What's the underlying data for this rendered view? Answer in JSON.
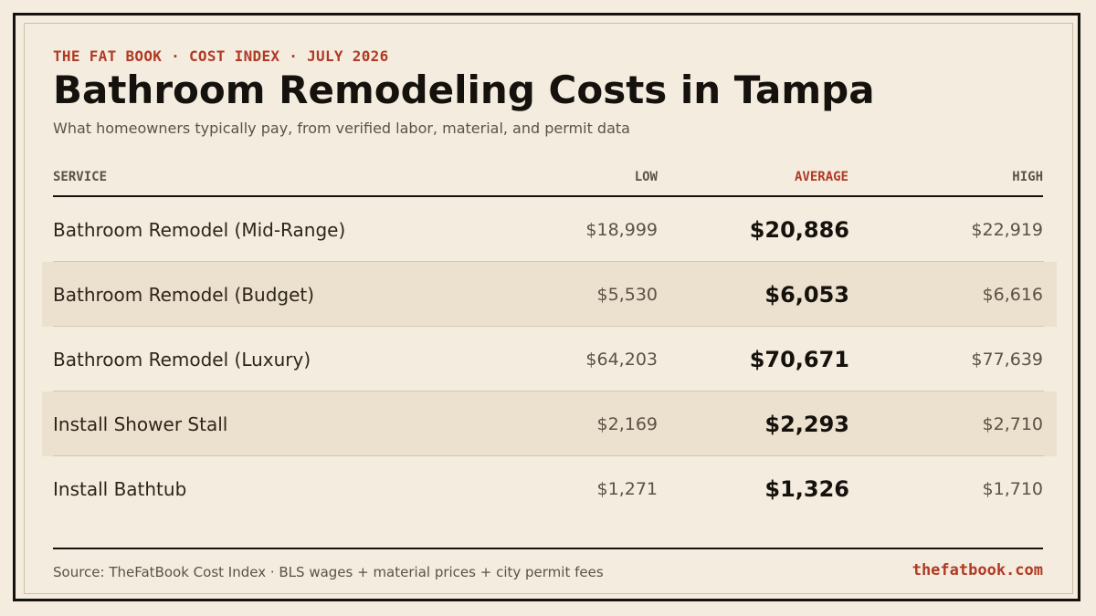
{
  "eyebrow": "THE FAT BOOK · COST INDEX · JULY 2026",
  "title": "Bathroom Remodeling Costs in Tampa",
  "subtitle": "What homeowners typically pay, from verified labor, material, and permit data",
  "table": {
    "headers": {
      "service": "SERVICE",
      "low": "LOW",
      "average": "AVERAGE",
      "high": "HIGH"
    },
    "rows": [
      {
        "service": "Bathroom Remodel (Mid-Range)",
        "low": "$18,999",
        "average": "$20,886",
        "high": "$22,919"
      },
      {
        "service": "Bathroom Remodel (Budget)",
        "low": "$5,530",
        "average": "$6,053",
        "high": "$6,616"
      },
      {
        "service": "Bathroom Remodel (Luxury)",
        "low": "$64,203",
        "average": "$70,671",
        "high": "$77,639"
      },
      {
        "service": "Install Shower Stall",
        "low": "$2,169",
        "average": "$2,293",
        "high": "$2,710"
      },
      {
        "service": "Install Bathtub",
        "low": "$1,271",
        "average": "$1,326",
        "high": "$1,710"
      }
    ]
  },
  "footer": {
    "source": "Source: TheFatBook Cost Index · BLS wages + material prices + city permit fees",
    "site": "thefatbook.com"
  },
  "colors": {
    "background": "#f4ecdf",
    "accent": "#b03a24",
    "ink": "#15110d",
    "shaded_row": "#ece1ce"
  }
}
